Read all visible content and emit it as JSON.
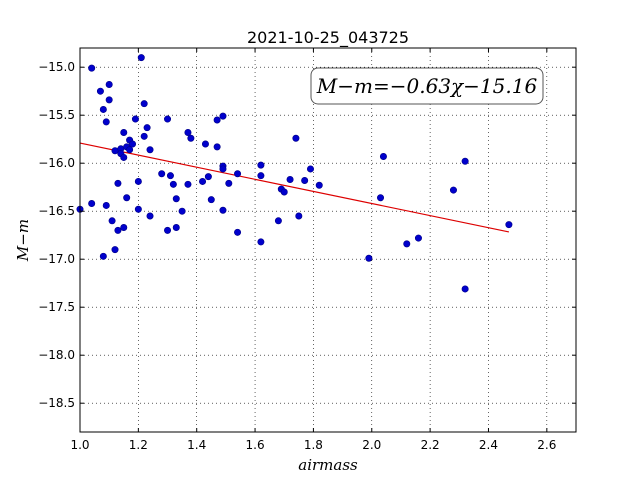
{
  "chart_data": {
    "type": "scatter",
    "title": "2021-10-25_043725",
    "xlabel": "airmass",
    "ylabel": "M−m",
    "xlim": [
      1.0,
      2.7
    ],
    "ylim": [
      -18.8,
      -14.8
    ],
    "y_inverted": true,
    "x_ticks": [
      1.0,
      1.2,
      1.4,
      1.6,
      1.8,
      2.0,
      2.2,
      2.4,
      2.6
    ],
    "x_tick_labels": [
      "1.0",
      "1.2",
      "1.4",
      "1.6",
      "1.8",
      "2.0",
      "2.2",
      "2.4",
      "2.6"
    ],
    "y_ticks": [
      -15.0,
      -15.5,
      -16.0,
      -16.5,
      -17.0,
      -17.5,
      -18.0,
      -18.5
    ],
    "y_tick_labels": [
      "−15.0",
      "−15.5",
      "−16.0",
      "−16.5",
      "−17.0",
      "−17.5",
      "−18.0",
      "−18.5"
    ],
    "grid": true,
    "point_color": "#0000cc",
    "fit_color": "#dd0000",
    "annotation": "M−m=−0.63χ−15.16",
    "fit": {
      "slope": -0.63,
      "intercept": -15.16,
      "x_range": [
        1.0,
        2.47
      ]
    },
    "points": [
      [
        1.0,
        -16.48
      ],
      [
        1.04,
        -15.01
      ],
      [
        1.04,
        -16.42
      ],
      [
        1.07,
        -15.25
      ],
      [
        1.08,
        -15.44
      ],
      [
        1.08,
        -16.97
      ],
      [
        1.09,
        -15.57
      ],
      [
        1.09,
        -16.44
      ],
      [
        1.1,
        -15.18
      ],
      [
        1.1,
        -15.34
      ],
      [
        1.11,
        -16.6
      ],
      [
        1.12,
        -15.87
      ],
      [
        1.12,
        -16.9
      ],
      [
        1.13,
        -16.21
      ],
      [
        1.13,
        -16.7
      ],
      [
        1.14,
        -15.85
      ],
      [
        1.14,
        -15.9
      ],
      [
        1.15,
        -15.68
      ],
      [
        1.15,
        -15.94
      ],
      [
        1.15,
        -16.67
      ],
      [
        1.16,
        -16.36
      ],
      [
        1.16,
        -15.83
      ],
      [
        1.17,
        -15.76
      ],
      [
        1.17,
        -15.86
      ],
      [
        1.18,
        -15.8
      ],
      [
        1.19,
        -15.54
      ],
      [
        1.2,
        -16.19
      ],
      [
        1.2,
        -16.48
      ],
      [
        1.21,
        -14.9
      ],
      [
        1.22,
        -15.72
      ],
      [
        1.22,
        -15.38
      ],
      [
        1.23,
        -15.63
      ],
      [
        1.24,
        -15.86
      ],
      [
        1.24,
        -16.55
      ],
      [
        1.28,
        -16.11
      ],
      [
        1.3,
        -15.54
      ],
      [
        1.3,
        -16.7
      ],
      [
        1.31,
        -16.13
      ],
      [
        1.32,
        -16.22
      ],
      [
        1.33,
        -16.37
      ],
      [
        1.33,
        -16.67
      ],
      [
        1.35,
        -16.5
      ],
      [
        1.37,
        -15.68
      ],
      [
        1.37,
        -16.22
      ],
      [
        1.38,
        -15.74
      ],
      [
        1.42,
        -16.19
      ],
      [
        1.43,
        -15.8
      ],
      [
        1.44,
        -16.14
      ],
      [
        1.45,
        -16.38
      ],
      [
        1.47,
        -15.55
      ],
      [
        1.47,
        -15.83
      ],
      [
        1.49,
        -15.51
      ],
      [
        1.49,
        -16.03
      ],
      [
        1.49,
        -16.06
      ],
      [
        1.49,
        -16.49
      ],
      [
        1.51,
        -16.21
      ],
      [
        1.54,
        -16.11
      ],
      [
        1.54,
        -16.72
      ],
      [
        1.62,
        -16.02
      ],
      [
        1.62,
        -16.13
      ],
      [
        1.62,
        -16.82
      ],
      [
        1.68,
        -16.6
      ],
      [
        1.69,
        -16.27
      ],
      [
        1.7,
        -16.3
      ],
      [
        1.72,
        -16.17
      ],
      [
        1.74,
        -15.74
      ],
      [
        1.75,
        -16.55
      ],
      [
        1.77,
        -16.18
      ],
      [
        1.79,
        -16.06
      ],
      [
        1.82,
        -16.23
      ],
      [
        1.99,
        -16.99
      ],
      [
        2.03,
        -16.36
      ],
      [
        2.04,
        -15.93
      ],
      [
        2.12,
        -16.84
      ],
      [
        2.16,
        -16.78
      ],
      [
        2.28,
        -16.28
      ],
      [
        2.32,
        -17.31
      ],
      [
        2.32,
        -15.98
      ],
      [
        2.47,
        -16.64
      ]
    ]
  }
}
